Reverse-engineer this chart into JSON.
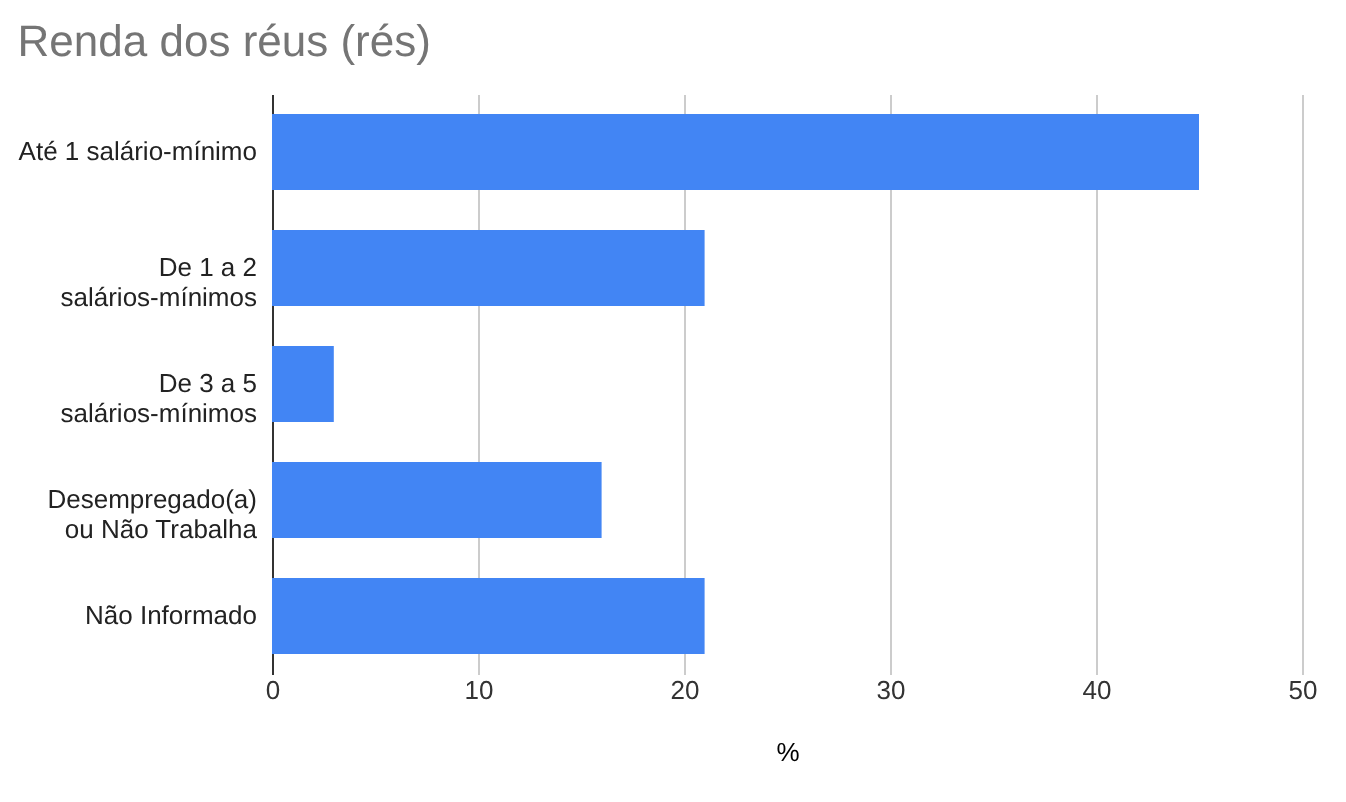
{
  "chart_data": {
    "type": "bar",
    "orientation": "horizontal",
    "title": "Renda dos réus (rés)",
    "xlabel": "%",
    "categories": [
      "Até 1 salário-mínimo",
      "De 1 a 2\nsalários-mínimos",
      "De 3 a 5\nsalários-mínimos",
      "Desempregado(a)\nou Não Trabalha",
      "Não Informado"
    ],
    "values": [
      45,
      21,
      3,
      16,
      21
    ],
    "color": "#4285f4",
    "xlim": [
      0,
      50
    ],
    "xticks": [
      0,
      10,
      20,
      30,
      40,
      50
    ],
    "grid": "x"
  }
}
